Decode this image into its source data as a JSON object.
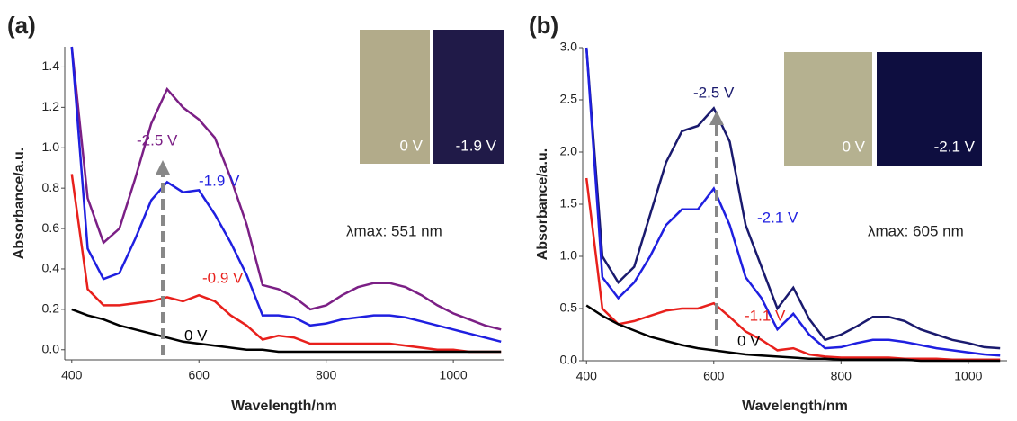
{
  "chart_data": [
    {
      "type": "line",
      "panel_label": "(a)",
      "annotation": "λmax: 551 nm",
      "inset_labels": [
        "0 V",
        "-1.9 V"
      ],
      "xlabel": "Wavelength/nm",
      "ylabel": "Absorbance/a.u.",
      "xlim": [
        389,
        1079
      ],
      "ylim": [
        -0.05,
        1.5
      ],
      "xticks": [
        400,
        600,
        800,
        1000
      ],
      "yticks": [
        {
          "value": 0,
          "label": "0.0"
        },
        0.2,
        0.4,
        0.6,
        0.8,
        {
          "value": 1,
          "label": "1.0"
        },
        1.2,
        1.4
      ],
      "x": [
        400,
        425,
        450,
        475,
        500,
        525,
        550,
        575,
        600,
        625,
        650,
        675,
        700,
        725,
        750,
        775,
        800,
        825,
        850,
        875,
        900,
        925,
        950,
        975,
        1000,
        1025,
        1050,
        1075
      ],
      "series": [
        {
          "name": "-2.5 V",
          "color": "#7b1f85",
          "values": [
            1.5,
            0.75,
            0.53,
            0.6,
            0.85,
            1.12,
            1.29,
            1.2,
            1.14,
            1.05,
            0.85,
            0.62,
            0.32,
            0.3,
            0.26,
            0.2,
            0.22,
            0.27,
            0.31,
            0.33,
            0.33,
            0.31,
            0.27,
            0.22,
            0.18,
            0.15,
            0.12,
            0.1
          ]
        },
        {
          "name": "-1.9 V",
          "color": "#1f1fe0",
          "values": [
            1.5,
            0.5,
            0.35,
            0.38,
            0.55,
            0.74,
            0.83,
            0.78,
            0.79,
            0.67,
            0.53,
            0.37,
            0.17,
            0.17,
            0.16,
            0.12,
            0.13,
            0.15,
            0.16,
            0.17,
            0.17,
            0.16,
            0.14,
            0.12,
            0.1,
            0.08,
            0.06,
            0.04
          ]
        },
        {
          "name": "-0.9 V",
          "color": "#e8201c",
          "values": [
            0.87,
            0.3,
            0.22,
            0.22,
            0.23,
            0.24,
            0.26,
            0.24,
            0.27,
            0.24,
            0.17,
            0.12,
            0.05,
            0.07,
            0.06,
            0.03,
            0.03,
            0.03,
            0.03,
            0.03,
            0.03,
            0.02,
            0.01,
            0,
            0,
            -0.01,
            -0.01,
            -0.01
          ]
        },
        {
          "name": "0 V",
          "color": "#000000",
          "values": [
            0.2,
            0.17,
            0.15,
            0.12,
            0.1,
            0.08,
            0.06,
            0.04,
            0.03,
            0.02,
            0.01,
            0,
            0,
            -0.01,
            -0.01,
            -0.01,
            -0.01,
            -0.01,
            -0.01,
            -0.01,
            -0.01,
            -0.01,
            -0.01,
            -0.01,
            -0.01,
            -0.01,
            -0.01,
            -0.01
          ]
        }
      ]
    },
    {
      "type": "line",
      "panel_label": "(b)",
      "annotation": "λmax: 605 nm",
      "inset_labels": [
        "0 V",
        "-2.1 V"
      ],
      "xlabel": "Wavelength/nm",
      "ylabel": "Absorbance/a.u.",
      "xlim": [
        394,
        1061
      ],
      "ylim": [
        0,
        3
      ],
      "xticks": [
        400,
        600,
        800,
        1000
      ],
      "yticks": [
        {
          "value": 0,
          "label": "0.0"
        },
        0.5,
        {
          "value": 1,
          "label": "1.0"
        },
        1.5,
        {
          "value": 2,
          "label": "2.0"
        },
        2.5,
        {
          "value": 3,
          "label": "3.0"
        }
      ],
      "x": [
        400,
        425,
        450,
        475,
        500,
        525,
        550,
        575,
        600,
        625,
        650,
        675,
        700,
        725,
        750,
        775,
        800,
        825,
        850,
        875,
        900,
        925,
        950,
        975,
        1000,
        1025,
        1050
      ],
      "series": [
        {
          "name": "-2.5 V",
          "color": "#1a1a6e",
          "values": [
            3,
            1,
            0.75,
            0.9,
            1.4,
            1.9,
            2.2,
            2.25,
            2.42,
            2.1,
            1.3,
            0.9,
            0.5,
            0.7,
            0.4,
            0.2,
            0.25,
            0.33,
            0.42,
            0.42,
            0.38,
            0.3,
            0.25,
            0.2,
            0.17,
            0.13,
            0.12
          ]
        },
        {
          "name": "-2.1 V",
          "color": "#1f1fe0",
          "values": [
            3,
            0.8,
            0.6,
            0.75,
            1,
            1.3,
            1.45,
            1.45,
            1.65,
            1.3,
            0.8,
            0.6,
            0.3,
            0.45,
            0.25,
            0.12,
            0.13,
            0.17,
            0.2,
            0.2,
            0.18,
            0.15,
            0.12,
            0.1,
            0.08,
            0.06,
            0.05
          ]
        },
        {
          "name": "-1.1 V",
          "color": "#e8201c",
          "values": [
            1.75,
            0.5,
            0.35,
            0.38,
            0.43,
            0.48,
            0.5,
            0.5,
            0.55,
            0.42,
            0.28,
            0.2,
            0.1,
            0.12,
            0.06,
            0.04,
            0.03,
            0.03,
            0.03,
            0.03,
            0.02,
            0.02,
            0.02,
            0.01,
            0.01,
            0.01,
            0.01
          ]
        },
        {
          "name": "0 V",
          "color": "#000000",
          "values": [
            0.53,
            0.43,
            0.35,
            0.29,
            0.23,
            0.19,
            0.15,
            0.12,
            0.1,
            0.08,
            0.06,
            0.05,
            0.04,
            0.03,
            0.02,
            0.02,
            0.01,
            0.01,
            0.01,
            0.01,
            0.01,
            0,
            0,
            0,
            0,
            0,
            0
          ]
        }
      ]
    }
  ]
}
